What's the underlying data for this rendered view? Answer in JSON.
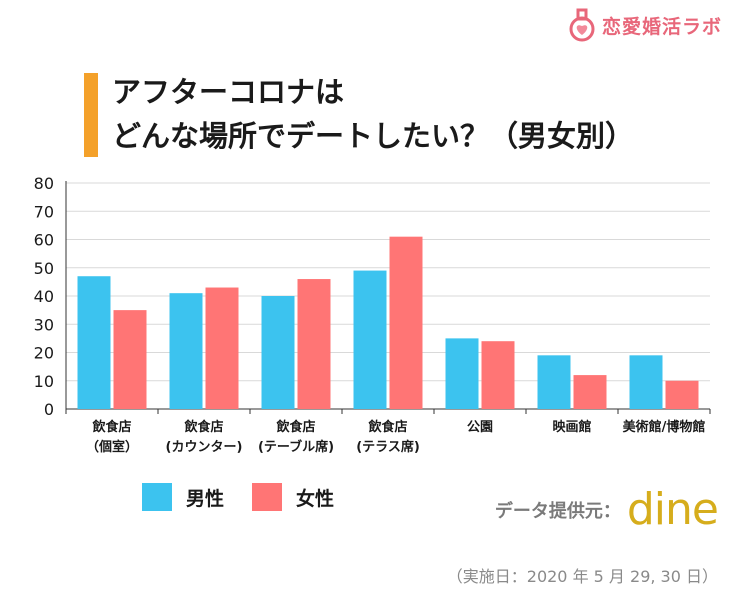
{
  "brand": {
    "name": "恋愛婚活ラボ",
    "icon": "flask-heart-icon",
    "color": "#e8677a"
  },
  "title": {
    "line1": "アフターコロナは",
    "line2": "どんな場所でデートしたい？（男女別）",
    "accent_color": "#f4a12a"
  },
  "chart_data": {
    "type": "bar",
    "categories": [
      [
        "飲食店",
        "（個室）"
      ],
      [
        "飲食店",
        "(カウンター)"
      ],
      [
        "飲食店",
        "(テーブル席)"
      ],
      [
        "飲食店",
        "(テラス席)"
      ],
      [
        "公園"
      ],
      [
        "映画館"
      ],
      [
        "美術館/博物館"
      ]
    ],
    "series": [
      {
        "name": "男性",
        "color": "#3cc3ef",
        "values": [
          47,
          41,
          40,
          49,
          25,
          19,
          19
        ]
      },
      {
        "name": "女性",
        "color": "#ff7575",
        "values": [
          35,
          43,
          46,
          61,
          24,
          12,
          10
        ]
      }
    ],
    "ylim": [
      0,
      80
    ],
    "yticks": [
      0,
      10,
      20,
      30,
      40,
      50,
      60,
      70,
      80
    ],
    "grid": true,
    "legend_position": "bottom-left",
    "title": "",
    "xlabel": "",
    "ylabel": ""
  },
  "legend": {
    "male_label": "男性",
    "female_label": "女性"
  },
  "source": {
    "label": "データ提供元：",
    "logo_text": "dine"
  },
  "date_note": "（実施日：2020 年 5 月 29, 30 日）"
}
